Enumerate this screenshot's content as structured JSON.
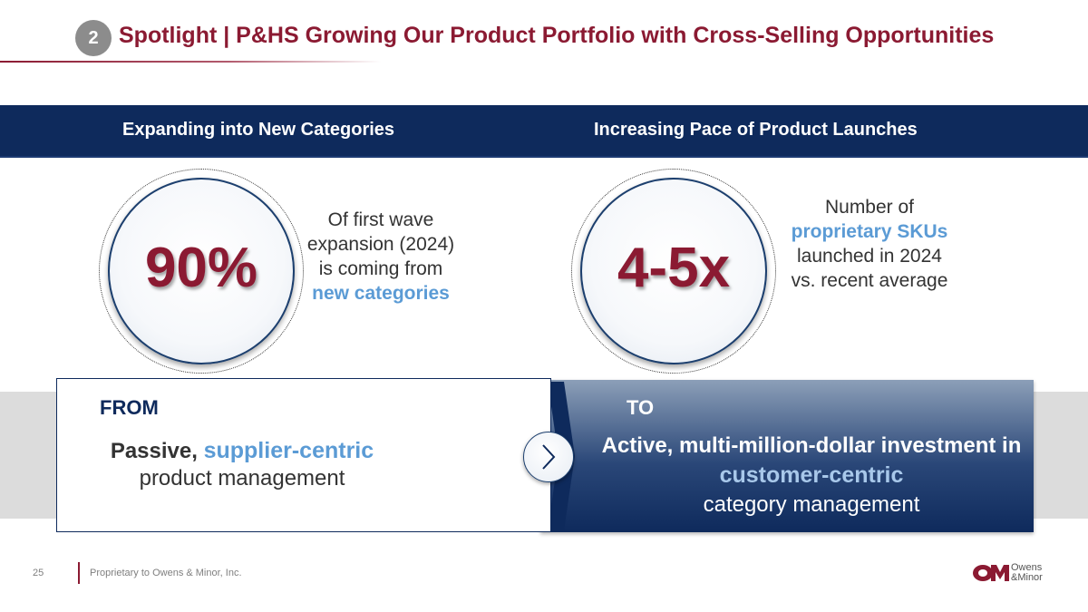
{
  "header": {
    "section_number": "2",
    "title": "Spotlight | P&HS Growing Our Product Portfolio with Cross-Selling Opportunities"
  },
  "band": {
    "left_heading": "Expanding into New Categories",
    "right_heading": "Increasing Pace of Product Launches"
  },
  "left_stat": {
    "value": "90%",
    "desc_plain": "Of first wave expansion (2024) is coming from",
    "desc_highlight": "new categories"
  },
  "right_stat": {
    "value": "4-5x",
    "desc_pre": "Number of",
    "desc_highlight": "proprietary SKUs",
    "desc_post": "launched in 2024 vs. recent average"
  },
  "from": {
    "label": "FROM",
    "text_bold": "Passive,",
    "text_highlight": "supplier-centric",
    "text_plain": "product management"
  },
  "to": {
    "label": "TO",
    "text_bold": "Active, multi-million-dollar investment in",
    "text_highlight": "customer-centric",
    "text_plain": "category management"
  },
  "footer": {
    "page_number": "25",
    "notice": "Proprietary to Owens & Minor, Inc.",
    "logo_line1": "Owens",
    "logo_line2": "&Minor"
  },
  "colors": {
    "brand_maroon": "#8b1a32",
    "navy": "#0e2a5c",
    "highlight_blue": "#5b9bd5"
  }
}
